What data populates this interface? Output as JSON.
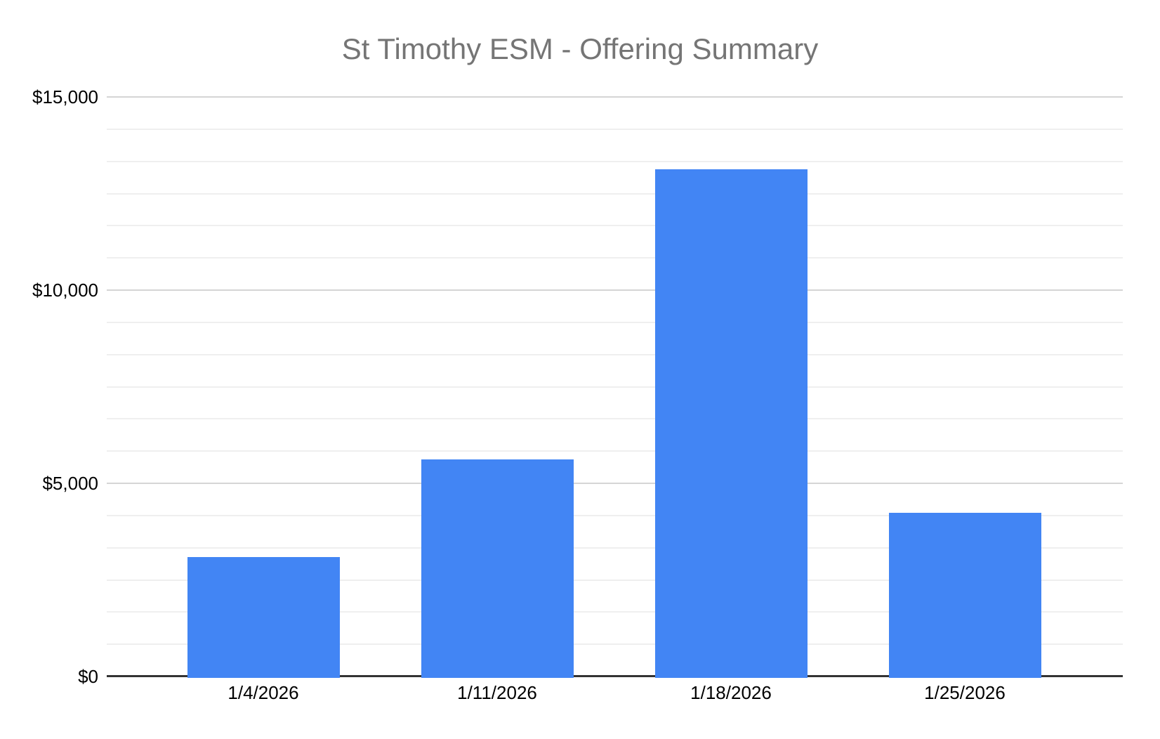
{
  "chart_data": {
    "type": "bar",
    "title": "St Timothy ESM - Offering Summary",
    "categories": [
      "1/4/2026",
      "1/11/2026",
      "1/18/2026",
      "1/25/2026"
    ],
    "values": [
      3130,
      5650,
      13160,
      4270
    ],
    "ylim": [
      0,
      15000
    ],
    "y_ticks": [
      0,
      5000,
      10000,
      15000
    ],
    "y_tick_labels": [
      "$0",
      "$5,000",
      "$10,000",
      "$15,000"
    ],
    "minor_grid_divisions_per_major": 6,
    "grid": true,
    "legend": "none",
    "colors": {
      "bar": "#4285f4",
      "title_text": "#757575",
      "axis_text": "#000000",
      "major_gridline": "#d5d5d5",
      "minor_gridline": "#efefef",
      "axis_line": "#333333",
      "background": "#ffffff"
    }
  }
}
